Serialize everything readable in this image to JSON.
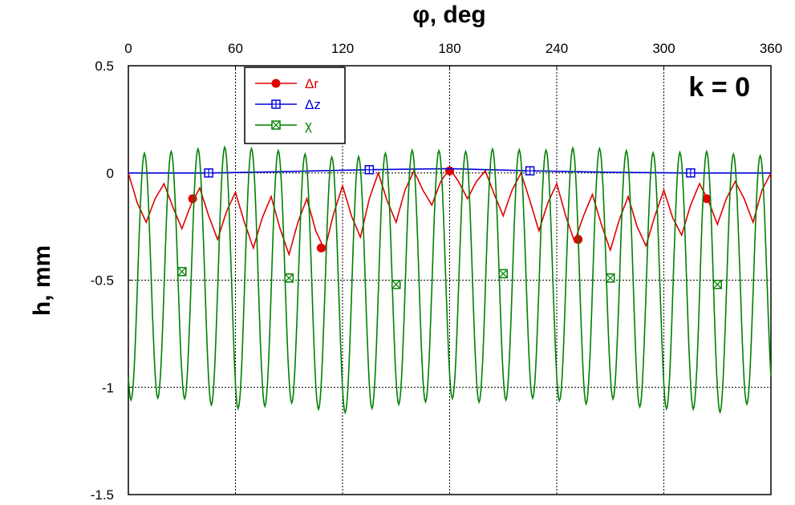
{
  "chart_data": {
    "type": "line",
    "xlabel": "φ, deg",
    "ylabel": "h, mm",
    "annotation": "k = 0",
    "xlim": [
      0,
      360
    ],
    "ylim": [
      -1.5,
      0.5
    ],
    "x_ticks": [
      "0",
      "60",
      "120",
      "180",
      "240",
      "300",
      "360"
    ],
    "y_ticks": [
      "0.5",
      "0",
      "-0.5",
      "-1",
      "-1.5"
    ],
    "x_tick_values": [
      0,
      60,
      120,
      180,
      240,
      300,
      360
    ],
    "y_tick_values": [
      0.5,
      0,
      -0.5,
      -1,
      -1.5
    ],
    "grid": true,
    "legend_placement": "top-left",
    "series": [
      {
        "name": "Δr",
        "color": "#e00000",
        "marker": "circle",
        "oscillation_periods": 18,
        "x": [
          0,
          5,
          10,
          15,
          20,
          25,
          30,
          35,
          40,
          45,
          50,
          55,
          60,
          65,
          70,
          75,
          80,
          85,
          90,
          95,
          100,
          105,
          110,
          115,
          120,
          125,
          130,
          135,
          140,
          145,
          150,
          155,
          160,
          165,
          170,
          175,
          180,
          185,
          190,
          195,
          200,
          205,
          210,
          215,
          220,
          225,
          230,
          235,
          240,
          245,
          250,
          255,
          260,
          265,
          270,
          275,
          280,
          285,
          290,
          295,
          300,
          305,
          310,
          315,
          320,
          325,
          330,
          335,
          340,
          345,
          350,
          355,
          360
        ],
        "y": [
          0,
          -0.14,
          -0.23,
          -0.12,
          -0.05,
          -0.16,
          -0.26,
          -0.15,
          -0.07,
          -0.2,
          -0.31,
          -0.18,
          -0.09,
          -0.23,
          -0.35,
          -0.21,
          -0.11,
          -0.26,
          -0.38,
          -0.23,
          -0.12,
          -0.27,
          -0.36,
          -0.19,
          -0.06,
          -0.2,
          -0.3,
          -0.12,
          0.0,
          -0.13,
          -0.23,
          -0.08,
          0.01,
          -0.08,
          -0.15,
          -0.04,
          0.02,
          -0.04,
          -0.12,
          -0.04,
          0.01,
          -0.1,
          -0.2,
          -0.08,
          0.0,
          -0.13,
          -0.27,
          -0.14,
          -0.05,
          -0.2,
          -0.32,
          -0.2,
          -0.1,
          -0.24,
          -0.36,
          -0.22,
          -0.11,
          -0.25,
          -0.34,
          -0.2,
          -0.08,
          -0.21,
          -0.29,
          -0.15,
          -0.05,
          -0.13,
          -0.24,
          -0.12,
          -0.04,
          -0.12,
          -0.23,
          -0.08,
          0
        ],
        "markers_x": [
          36,
          108,
          180,
          252,
          324
        ],
        "markers_y": [
          -0.12,
          -0.35,
          0.01,
          -0.31,
          -0.12
        ]
      },
      {
        "name": "Δz",
        "color": "#0000e0",
        "marker": "square-plus",
        "x": [
          0,
          45,
          80,
          135,
          180,
          225,
          270,
          315,
          360
        ],
        "y": [
          0,
          0,
          0.005,
          0.015,
          0.02,
          0.01,
          0.003,
          0,
          0
        ],
        "markers_x": [
          45,
          135,
          225,
          315
        ],
        "markers_y": [
          0,
          0.015,
          0.01,
          0
        ]
      },
      {
        "name": "χ",
        "color": "#008000",
        "marker": "square-x",
        "oscillation_periods": 24,
        "x": [
          0,
          15,
          30,
          45,
          60,
          75,
          90,
          105,
          120,
          135,
          150,
          165,
          180,
          195,
          210,
          225,
          240,
          255,
          270,
          285,
          300,
          315,
          330,
          345,
          360
        ],
        "y_max": [
          0.08,
          0.1,
          0.1,
          0.12,
          0.12,
          0.11,
          0.1,
          0.08,
          0.07,
          0.08,
          0.1,
          0.11,
          0.1,
          0.1,
          0.12,
          0.1,
          0.11,
          0.12,
          0.11,
          0.1,
          0.09,
          0.1,
          0.1,
          0.08,
          0.08
        ],
        "y_min": [
          -1.06,
          -1.05,
          -1.05,
          -1.08,
          -1.1,
          -1.09,
          -1.07,
          -1.1,
          -1.12,
          -1.1,
          -1.08,
          -1.07,
          -1.05,
          -1.07,
          -1.06,
          -1.05,
          -1.06,
          -1.08,
          -1.05,
          -1.09,
          -1.1,
          -1.1,
          -1.12,
          -1.08,
          -1.06
        ],
        "markers_x": [
          30,
          90,
          150,
          210,
          270,
          330
        ],
        "markers_y": [
          -0.46,
          -0.49,
          -0.52,
          -0.47,
          -0.49,
          -0.52
        ]
      }
    ]
  }
}
